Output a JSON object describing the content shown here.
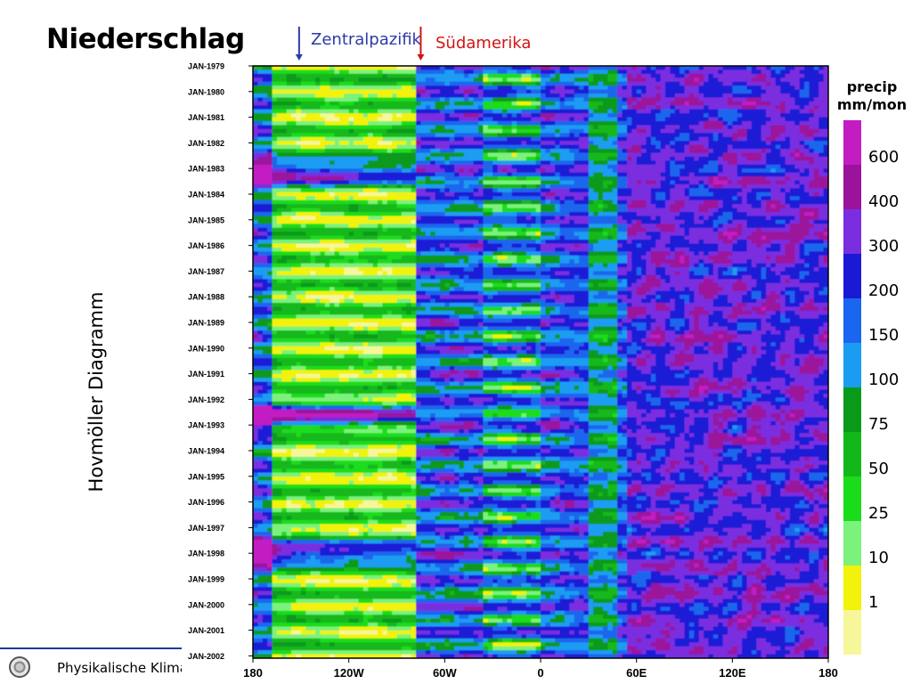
{
  "page": {
    "title": "Niederschlag",
    "side_label": "Hovmöller Diagramm",
    "footer_text": "Physikalische Klima",
    "colors": {
      "zentralpazifik": "#2b3aa8",
      "suedamerika": "#d21414",
      "footer_line": "#1f3a93"
    }
  },
  "chart_data": {
    "type": "heatmap",
    "title": "",
    "xlabel": "",
    "ylabel": "",
    "x_ticks": [
      "180",
      "120W",
      "60W",
      "0",
      "60E",
      "120E",
      "180"
    ],
    "x_range": [
      -180,
      180
    ],
    "y_ticks": [
      "JAN-1979",
      "JAN-1980",
      "JAN-1981",
      "JAN-1982",
      "JAN-1983",
      "JAN-1984",
      "JAN-1985",
      "JAN-1986",
      "JAN-1987",
      "JAN-1988",
      "JAN-1989",
      "JAN-1990",
      "JAN-1991",
      "JAN-1992",
      "JAN-1993",
      "JAN-1994",
      "JAN-1995",
      "JAN-1996",
      "JAN-1997",
      "JAN-1998",
      "JAN-1999",
      "JAN-2000",
      "JAN-2001",
      "JAN-2002"
    ],
    "y_range": [
      "JAN-1979",
      "JAN-2002"
    ],
    "annotations": [
      {
        "text": "Zentralpazifik",
        "x": -150,
        "color": "#2b3aa8"
      },
      {
        "text": "Südamerika",
        "x": -75,
        "color": "#d21414"
      }
    ],
    "colorbar": {
      "title_line1": "precip",
      "title_line2": "mm/mon",
      "labels": [
        "600",
        "400",
        "300",
        "200",
        "150",
        "100",
        "75",
        "50",
        "25",
        "10",
        "1"
      ],
      "colors": [
        "#c21cc2",
        "#9b129b",
        "#7a2ee0",
        "#1a1ad6",
        "#1a66ee",
        "#1a9cf2",
        "#0a9a1a",
        "#12b81a",
        "#1adc1a",
        "#7cf27c",
        "#f2f20a",
        "#f6f69a"
      ]
    }
  }
}
